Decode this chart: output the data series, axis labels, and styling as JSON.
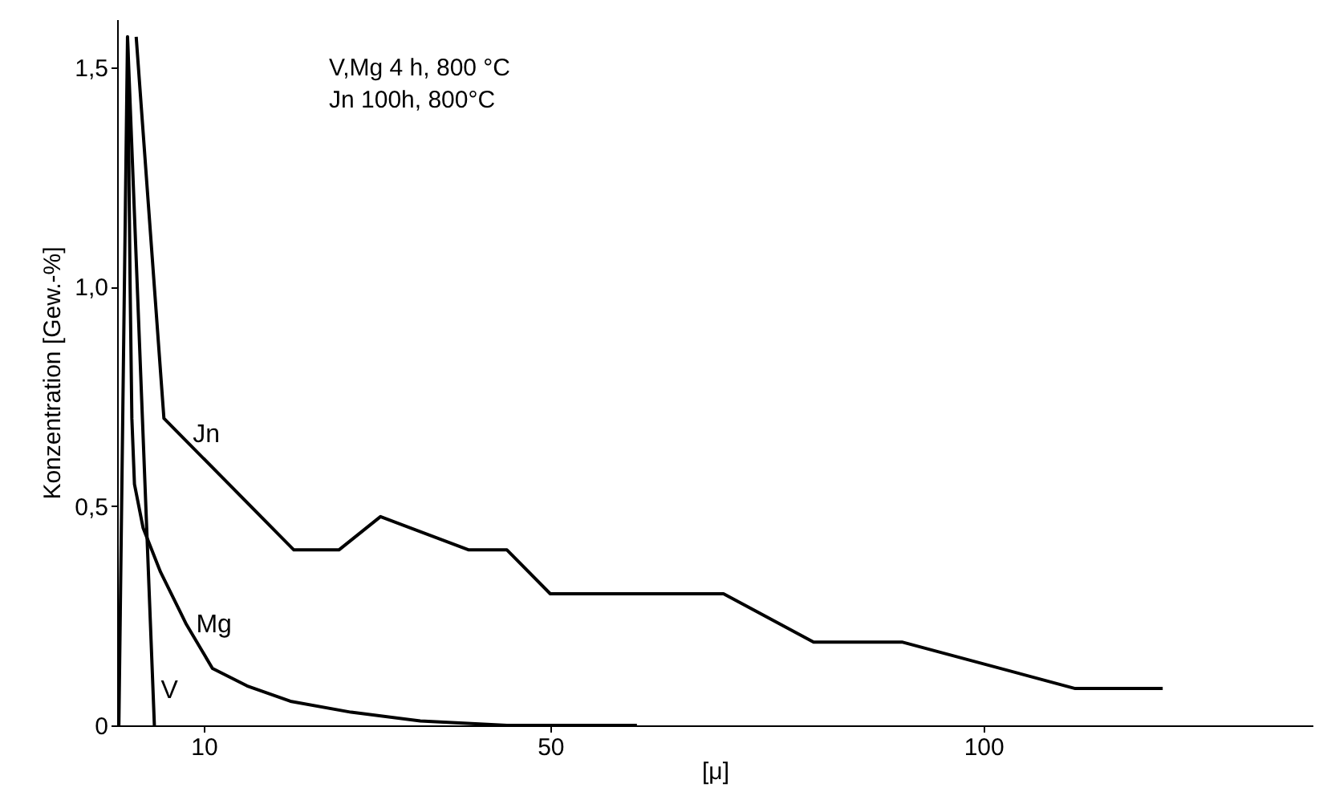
{
  "chart_data": {
    "type": "line",
    "xlabel": "[μ]",
    "ylabel": "Konzentration  [Gew.-%]",
    "annotations": [
      "V,Mg  4 h, 800 °C",
      "Jn 100h, 800°C"
    ],
    "xlim": [
      0,
      138
    ],
    "xticks": [
      10,
      50,
      100
    ],
    "ylim": [
      0,
      1.61
    ],
    "yticks": [
      {
        "value": 0,
        "label": "0"
      },
      {
        "value": 0.5,
        "label": "0,5"
      },
      {
        "value": 1,
        "label": "1,0"
      },
      {
        "value": 1.5,
        "label": "1,5"
      }
    ],
    "grid": false,
    "marker": "none",
    "line_style": "solid",
    "series": [
      {
        "name": "Jn",
        "color": "#000000",
        "x": [
          2.2,
          5.4,
          20.4,
          25.6,
          30.4,
          40.6,
          45,
          50,
          70,
          80.4,
          90.6,
          110.6,
          120.7
        ],
        "values": [
          1.57,
          0.7,
          0.4,
          0.4,
          0.476,
          0.4,
          0.4,
          0.3,
          0.3,
          0.19,
          0.19,
          0.084,
          0.084
        ]
      },
      {
        "name": "Mg",
        "color": "#000000",
        "x": [
          1.2,
          1.5,
          1.7,
          2,
          3,
          5,
          8,
          11,
          15,
          20,
          27,
          35,
          45,
          60
        ],
        "values": [
          1.57,
          1.0,
          0.7,
          0.55,
          0.45,
          0.35,
          0.23,
          0.13,
          0.09,
          0.055,
          0.03,
          0.01,
          0,
          0
        ]
      },
      {
        "name": "V",
        "color": "#000000",
        "x": [
          0.2,
          1.2,
          4.3
        ],
        "values": [
          0,
          1.57,
          0
        ]
      }
    ]
  }
}
